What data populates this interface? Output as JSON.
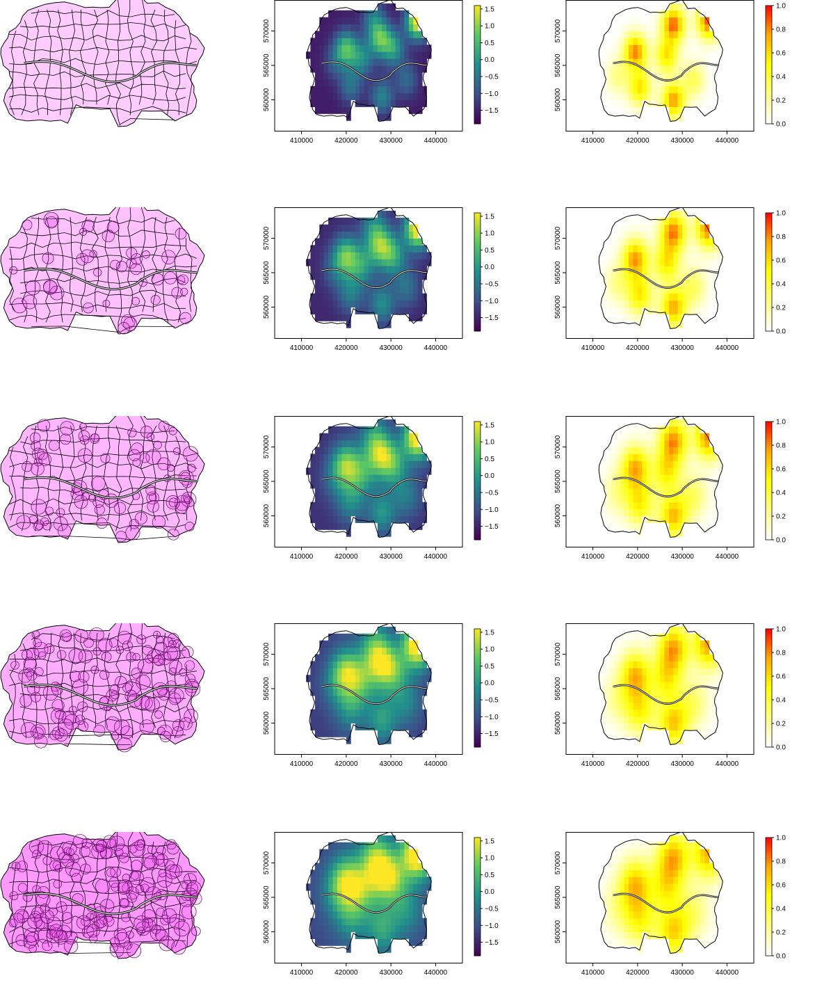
{
  "chart_data": {
    "type": "heatmap",
    "layout": "5 rows x 3 columns of map panels",
    "rows": [
      {
        "row": 1,
        "polygon_fill": "#ffccff",
        "overlap_density": "low"
      },
      {
        "row": 2,
        "polygon_fill": "#ffc2ff",
        "overlap_density": "medium-low"
      },
      {
        "row": 3,
        "polygon_fill": "#ffb8ff",
        "overlap_density": "medium"
      },
      {
        "row": 4,
        "polygon_fill": "#ffadff",
        "overlap_density": "medium-high"
      },
      {
        "row": 5,
        "polygon_fill": "#ff99ff",
        "overlap_density": "high"
      }
    ],
    "map_columns": [
      "polygons",
      "surface",
      "probability"
    ],
    "x_axis": {
      "ticks": [
        "410000",
        "420000",
        "430000",
        "440000"
      ],
      "range": [
        404000,
        446000
      ]
    },
    "y_axis": {
      "ticks": [
        "560000",
        "565000",
        "570000"
      ],
      "range": [
        555500,
        574500
      ]
    },
    "surface_colorbar": {
      "palette": "viridis",
      "ticks": [
        "1.5",
        "1.0",
        "0.5",
        "0.0",
        "−0.5",
        "−1.0",
        "−1.5"
      ],
      "range": [
        -1.9,
        1.6
      ]
    },
    "probability_colorbar": {
      "palette": "heat (white-yellow-red)",
      "ticks": [
        "1.0",
        "0.8",
        "0.6",
        "0.4",
        "0.2",
        "0.0"
      ],
      "range": [
        0,
        1
      ]
    },
    "grid": false,
    "legend_placement": "right of each map",
    "colors": {
      "outline": "#000000",
      "viridis": [
        "#440154",
        "#3b528b",
        "#21908d",
        "#5dc963",
        "#fde725"
      ],
      "heat": [
        "#ffffff",
        "#ffff80",
        "#ffff00",
        "#ffa500",
        "#ff0000"
      ]
    }
  }
}
